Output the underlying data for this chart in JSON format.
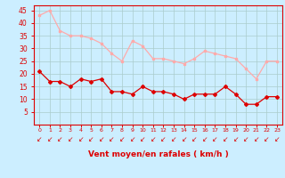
{
  "hours": [
    0,
    1,
    2,
    3,
    4,
    5,
    6,
    7,
    8,
    9,
    10,
    11,
    12,
    13,
    14,
    15,
    16,
    17,
    18,
    19,
    20,
    21,
    22,
    23
  ],
  "wind_avg": [
    21,
    17,
    17,
    15,
    18,
    17,
    18,
    13,
    13,
    12,
    15,
    13,
    13,
    12,
    10,
    12,
    12,
    12,
    15,
    12,
    8,
    8,
    11,
    11
  ],
  "wind_gust": [
    43,
    45,
    37,
    35,
    35,
    34,
    32,
    28,
    25,
    33,
    31,
    26,
    26,
    25,
    24,
    26,
    29,
    28,
    27,
    26,
    22,
    18,
    25,
    25
  ],
  "avg_color": "#dd0000",
  "gust_color": "#ffaaaa",
  "bg_color": "#cceeff",
  "grid_color": "#aacccc",
  "xlabel": "Vent moyen/en rafales ( km/h )",
  "xlabel_color": "#dd0000",
  "tick_label_color": "#dd0000",
  "spine_color": "#dd0000",
  "ylim": [
    0,
    47
  ],
  "yticks": [
    5,
    10,
    15,
    20,
    25,
    30,
    35,
    40,
    45
  ]
}
